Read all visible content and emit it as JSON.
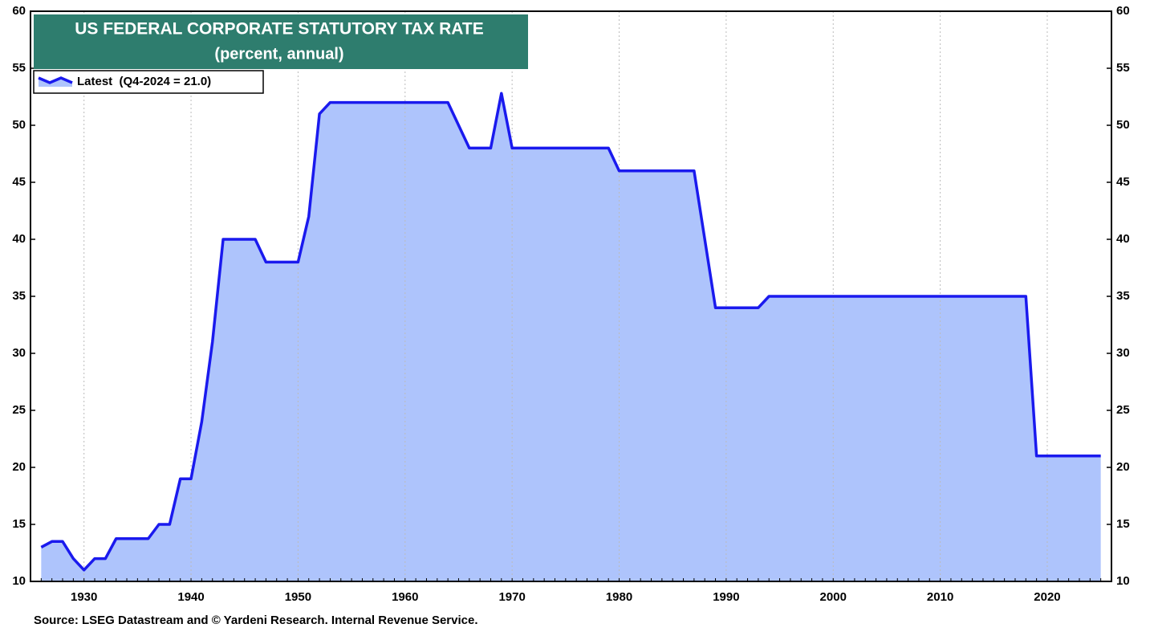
{
  "chart_data": {
    "type": "area",
    "title": "US FEDERAL CORPORATE STATUTORY TAX RATE",
    "subtitle": "(percent, annual)",
    "source": "Source: LSEG Datastream and © Yardeni Research. Internal Revenue Service.",
    "x": [
      1926,
      1927,
      1928,
      1929,
      1930,
      1931,
      1932,
      1933,
      1934,
      1935,
      1936,
      1937,
      1938,
      1939,
      1940,
      1941,
      1942,
      1943,
      1944,
      1945,
      1946,
      1947,
      1948,
      1949,
      1950,
      1951,
      1952,
      1953,
      1954,
      1955,
      1956,
      1957,
      1958,
      1959,
      1960,
      1961,
      1962,
      1963,
      1964,
      1965,
      1966,
      1967,
      1968,
      1969,
      1970,
      1971,
      1972,
      1973,
      1974,
      1975,
      1976,
      1977,
      1978,
      1979,
      1980,
      1981,
      1982,
      1983,
      1984,
      1985,
      1986,
      1987,
      1988,
      1989,
      1990,
      1991,
      1992,
      1993,
      1994,
      1995,
      1996,
      1997,
      1998,
      1999,
      2000,
      2001,
      2002,
      2003,
      2004,
      2005,
      2006,
      2007,
      2008,
      2009,
      2010,
      2011,
      2012,
      2013,
      2014,
      2015,
      2016,
      2017,
      2018,
      2019,
      2020,
      2021,
      2022,
      2023,
      2024,
      2025
    ],
    "series": [
      {
        "name": "Latest  (Q4-2024 = 21.0)",
        "color": "#1a1aee",
        "fill": "#aec4fc",
        "values": [
          13,
          13.5,
          13.5,
          12,
          11,
          12,
          12,
          13.75,
          13.75,
          13.75,
          13.75,
          15,
          15,
          19,
          19,
          24,
          31,
          40,
          40,
          40,
          40,
          38,
          38,
          38,
          38,
          42,
          51,
          52,
          52,
          52,
          52,
          52,
          52,
          52,
          52,
          52,
          52,
          52,
          52,
          50,
          48,
          48,
          48,
          52.8,
          48,
          48,
          48,
          48,
          48,
          48,
          48,
          48,
          48,
          48,
          46,
          46,
          46,
          46,
          46,
          46,
          46,
          46,
          40,
          34,
          34,
          34,
          34,
          34,
          35,
          35,
          35,
          35,
          35,
          35,
          35,
          35,
          35,
          35,
          35,
          35,
          35,
          35,
          35,
          35,
          35,
          35,
          35,
          35,
          35,
          35,
          35,
          35,
          35,
          21,
          21,
          21,
          21,
          21,
          21,
          21
        ]
      }
    ],
    "xlim": [
      1925,
      2026
    ],
    "xticks": [
      1930,
      1940,
      1950,
      1960,
      1970,
      1980,
      1990,
      2000,
      2010,
      2020
    ],
    "ylim": [
      10,
      60
    ],
    "yticks": [
      10,
      15,
      20,
      25,
      30,
      35,
      40,
      45,
      50,
      55,
      60
    ],
    "grid": true,
    "title_color": "#2e7d6e"
  }
}
